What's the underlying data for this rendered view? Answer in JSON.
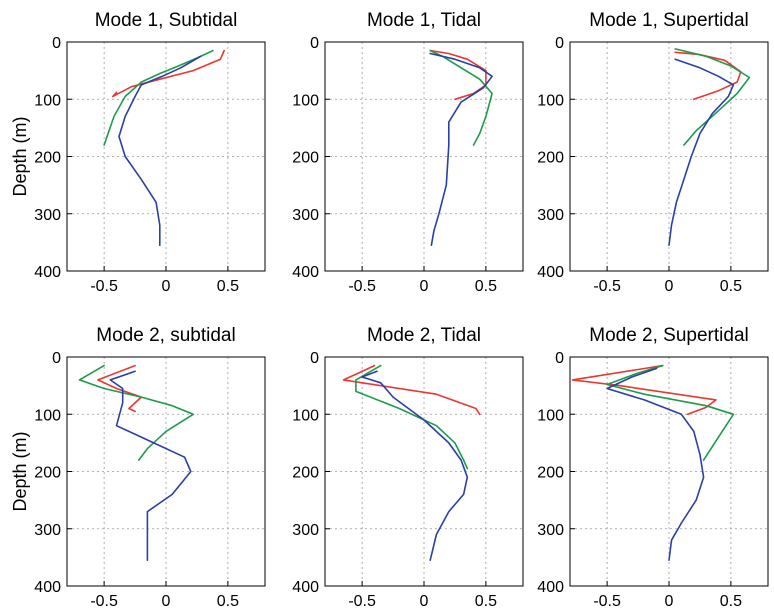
{
  "colors": {
    "red": "#e8382f",
    "green": "#1f9a4a",
    "blue": "#2a3fa8",
    "grid": "#9a9a9a"
  },
  "chart_data": [
    {
      "type": "line",
      "title": "Mode 1, Subtidal",
      "ylabel": "Depth (m)",
      "xlim": [
        -0.8,
        0.8
      ],
      "ylim": [
        0,
        400
      ],
      "xticks": [
        -0.5,
        0,
        0.5
      ],
      "xtick_labels": [
        "-0.5",
        "0",
        "0.5"
      ],
      "yticks": [
        0,
        100,
        200,
        300,
        400
      ],
      "ytick_labels": [
        "0",
        "100",
        "200",
        "300",
        "400"
      ],
      "grid": true,
      "series": [
        {
          "color": "red",
          "x": [
            0.47,
            0.44,
            0.22,
            -0.05,
            -0.28,
            -0.43,
            -0.4
          ],
          "y": [
            15,
            30,
            50,
            65,
            78,
            95,
            88
          ]
        },
        {
          "color": "green",
          "x": [
            0.38,
            0.25,
            0.1,
            -0.05,
            -0.2,
            -0.33,
            -0.42,
            -0.5
          ],
          "y": [
            15,
            28,
            42,
            55,
            70,
            95,
            130,
            180
          ]
        },
        {
          "color": "blue",
          "x": [
            0.28,
            0.12,
            -0.03,
            -0.2,
            -0.25,
            -0.33,
            -0.38,
            -0.33,
            -0.2,
            -0.08,
            -0.05,
            -0.05
          ],
          "y": [
            25,
            45,
            60,
            75,
            95,
            130,
            165,
            200,
            240,
            280,
            320,
            355
          ]
        }
      ]
    },
    {
      "type": "line",
      "title": "Mode 1, Tidal",
      "ylabel": "",
      "xlim": [
        -0.8,
        0.8
      ],
      "ylim": [
        0,
        400
      ],
      "xticks": [
        -0.5,
        0,
        0.5
      ],
      "xtick_labels": [
        "-0.5",
        "0",
        "0.5"
      ],
      "yticks": [
        0,
        100,
        200,
        300,
        400
      ],
      "ytick_labels": [
        "0",
        "100",
        "200",
        "300",
        "400"
      ],
      "grid": true,
      "series": [
        {
          "color": "red",
          "x": [
            0.05,
            0.2,
            0.35,
            0.5,
            0.5,
            0.4,
            0.25
          ],
          "y": [
            15,
            20,
            30,
            50,
            75,
            90,
            100
          ]
        },
        {
          "color": "green",
          "x": [
            0.05,
            0.15,
            0.3,
            0.45,
            0.55,
            0.5,
            0.45,
            0.4
          ],
          "y": [
            15,
            25,
            45,
            65,
            90,
            130,
            160,
            180
          ]
        },
        {
          "color": "blue",
          "x": [
            0.05,
            0.25,
            0.45,
            0.55,
            0.48,
            0.3,
            0.2,
            0.2,
            0.18,
            0.12,
            0.08,
            0.06
          ],
          "y": [
            20,
            30,
            45,
            60,
            80,
            105,
            140,
            180,
            250,
            300,
            330,
            355
          ]
        }
      ]
    },
    {
      "type": "line",
      "title": "Mode 1, Supertidal",
      "ylabel": "",
      "xlim": [
        -0.8,
        0.8
      ],
      "ylim": [
        0,
        400
      ],
      "xticks": [
        -0.5,
        0,
        0.5
      ],
      "xtick_labels": [
        "-0.5",
        "0",
        "0.5"
      ],
      "yticks": [
        0,
        100,
        200,
        300,
        400
      ],
      "ytick_labels": [
        "0",
        "100",
        "200",
        "300",
        "400"
      ],
      "grid": true,
      "series": [
        {
          "color": "red",
          "x": [
            0.05,
            0.25,
            0.45,
            0.58,
            0.55,
            0.4,
            0.2
          ],
          "y": [
            18,
            22,
            32,
            52,
            70,
            85,
            100
          ]
        },
        {
          "color": "green",
          "x": [
            0.05,
            0.3,
            0.5,
            0.65,
            0.55,
            0.4,
            0.22,
            0.12
          ],
          "y": [
            12,
            25,
            42,
            62,
            90,
            120,
            155,
            180
          ]
        },
        {
          "color": "blue",
          "x": [
            0.05,
            0.25,
            0.4,
            0.52,
            0.48,
            0.35,
            0.25,
            0.18,
            0.12,
            0.06,
            0.02,
            0.0
          ],
          "y": [
            30,
            45,
            60,
            75,
            95,
            125,
            160,
            200,
            240,
            280,
            320,
            355
          ]
        }
      ]
    },
    {
      "type": "line",
      "title": "Mode 2, subtidal",
      "ylabel": "Depth (m)",
      "xlim": [
        -0.8,
        0.8
      ],
      "ylim": [
        0,
        400
      ],
      "xticks": [
        -0.5,
        0,
        0.5
      ],
      "xtick_labels": [
        "-0.5",
        "0",
        "0.5"
      ],
      "yticks": [
        0,
        100,
        200,
        300,
        400
      ],
      "ytick_labels": [
        "0",
        "100",
        "200",
        "300",
        "400"
      ],
      "grid": true,
      "series": [
        {
          "color": "red",
          "x": [
            -0.25,
            -0.55,
            -0.4,
            -0.2,
            -0.3,
            -0.25
          ],
          "y": [
            15,
            40,
            55,
            70,
            90,
            95
          ]
        },
        {
          "color": "green",
          "x": [
            -0.5,
            -0.7,
            -0.5,
            -0.2,
            0.05,
            0.22,
            0.0,
            -0.15,
            -0.22
          ],
          "y": [
            15,
            40,
            55,
            70,
            85,
            100,
            130,
            160,
            180
          ]
        },
        {
          "color": "blue",
          "x": [
            -0.25,
            -0.45,
            -0.35,
            -0.35,
            -0.4,
            -0.2,
            0.15,
            0.2,
            0.05,
            -0.15,
            -0.15,
            -0.15
          ],
          "y": [
            25,
            40,
            55,
            80,
            120,
            140,
            175,
            200,
            240,
            270,
            310,
            355
          ]
        }
      ]
    },
    {
      "type": "line",
      "title": "Mode 2, Tidal",
      "ylabel": "",
      "xlim": [
        -0.8,
        0.8
      ],
      "ylim": [
        0,
        400
      ],
      "xticks": [
        -0.5,
        0,
        0.5
      ],
      "xtick_labels": [
        "-0.5",
        "0",
        "0.5"
      ],
      "yticks": [
        0,
        100,
        200,
        300,
        400
      ],
      "ytick_labels": [
        "0",
        "100",
        "200",
        "300",
        "400"
      ],
      "grid": true,
      "series": [
        {
          "color": "red",
          "x": [
            -0.4,
            -0.65,
            -0.5,
            0.1,
            0.42,
            0.45
          ],
          "y": [
            15,
            40,
            45,
            65,
            90,
            100
          ]
        },
        {
          "color": "green",
          "x": [
            -0.35,
            -0.55,
            -0.55,
            -0.2,
            0.1,
            0.25,
            0.32,
            0.35
          ],
          "y": [
            15,
            40,
            60,
            90,
            120,
            150,
            180,
            195
          ]
        },
        {
          "color": "blue",
          "x": [
            -0.38,
            -0.5,
            -0.35,
            -0.25,
            0.0,
            0.2,
            0.3,
            0.35,
            0.32,
            0.2,
            0.1,
            0.05
          ],
          "y": [
            25,
            35,
            45,
            70,
            110,
            150,
            180,
            210,
            240,
            270,
            310,
            355
          ]
        }
      ]
    },
    {
      "type": "line",
      "title": "Mode 2, Supertidal",
      "ylabel": "",
      "xlim": [
        -0.8,
        0.8
      ],
      "ylim": [
        0,
        400
      ],
      "xticks": [
        -0.5,
        0,
        0.5
      ],
      "xtick_labels": [
        "-0.5",
        "0",
        "0.5"
      ],
      "yticks": [
        0,
        100,
        200,
        300,
        400
      ],
      "ytick_labels": [
        "0",
        "100",
        "200",
        "300",
        "400"
      ],
      "grid": true,
      "series": [
        {
          "color": "red",
          "x": [
            -0.05,
            -0.78,
            -0.4,
            0.38,
            0.3,
            0.15
          ],
          "y": [
            15,
            40,
            50,
            75,
            88,
            100
          ]
        },
        {
          "color": "green",
          "x": [
            -0.05,
            -0.25,
            -0.5,
            -0.2,
            0.3,
            0.52,
            0.4,
            0.28
          ],
          "y": [
            15,
            28,
            48,
            65,
            85,
            100,
            140,
            180
          ]
        },
        {
          "color": "blue",
          "x": [
            -0.1,
            -0.3,
            -0.5,
            -0.2,
            0.1,
            0.2,
            0.25,
            0.28,
            0.22,
            0.1,
            0.02,
            0.0
          ],
          "y": [
            20,
            35,
            55,
            75,
            100,
            130,
            170,
            210,
            250,
            290,
            320,
            355
          ]
        }
      ]
    }
  ]
}
